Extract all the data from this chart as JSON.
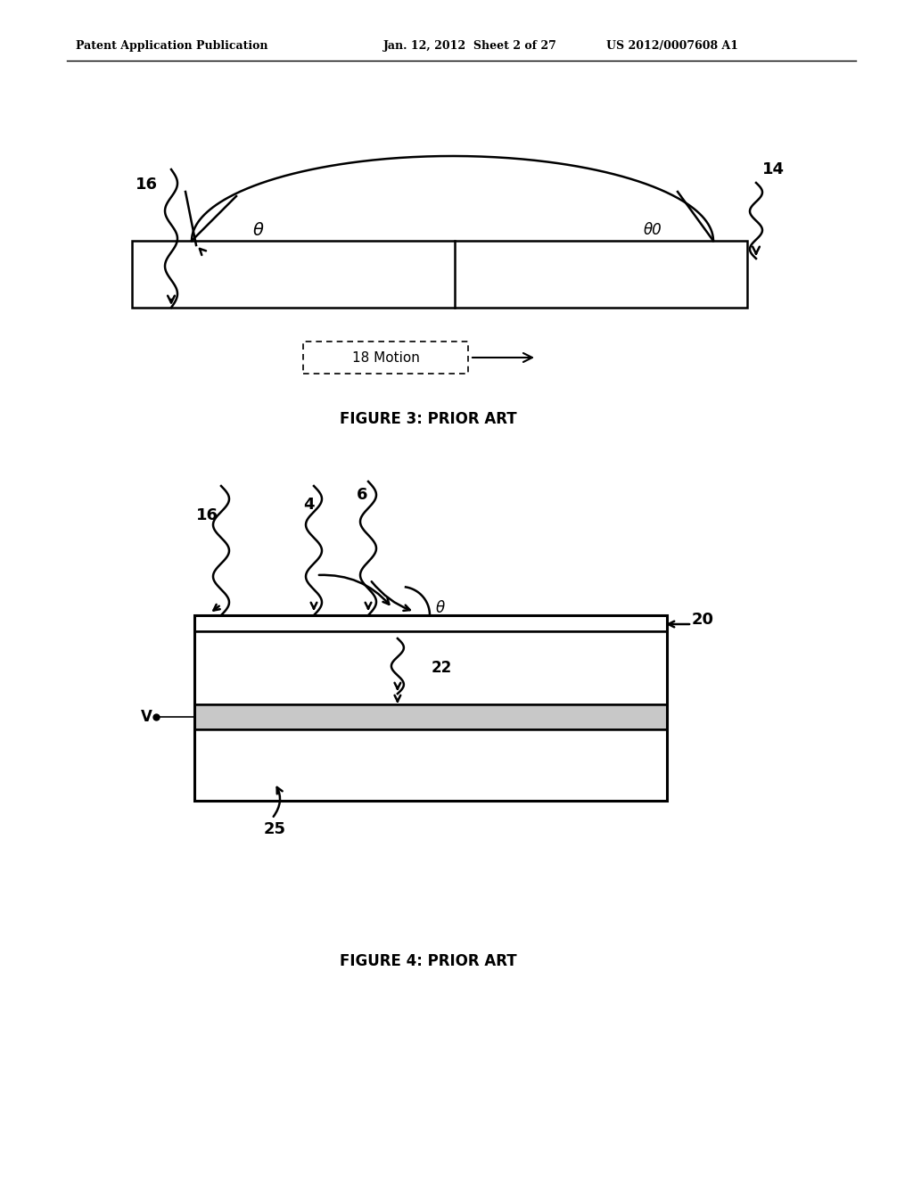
{
  "background_color": "#ffffff",
  "header_left": "Patent Application Publication",
  "header_center": "Jan. 12, 2012  Sheet 2 of 27",
  "header_right": "US 2012/0007608 A1",
  "fig3_title": "FIGURE 3: PRIOR ART",
  "fig4_title": "FIGURE 4: PRIOR ART",
  "fig3_label_16": "16",
  "fig3_label_14": "14",
  "fig3_label_18": "18 Motion",
  "fig3_theta_left": "θ",
  "fig3_theta_right": "θ0",
  "fig4_label_16": "16",
  "fig4_label_4": "4",
  "fig4_label_6": "6",
  "fig4_label_20": "20",
  "fig4_label_22": "22",
  "fig4_label_25": "25",
  "fig4_label_V": "V",
  "fig4_theta": "θ"
}
